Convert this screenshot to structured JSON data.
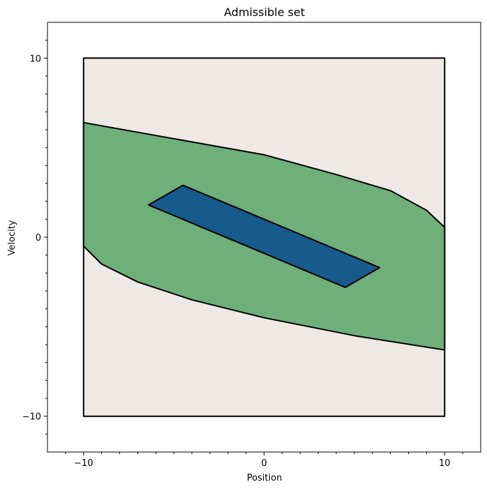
{
  "chart_data": {
    "type": "area",
    "title": "Admissible set",
    "xlabel": "Position",
    "ylabel": "Velocity",
    "xlim": [
      -12,
      12
    ],
    "ylim": [
      -12,
      12
    ],
    "x_ticks": [
      -10,
      0,
      10
    ],
    "y_ticks": [
      -10,
      0,
      10
    ],
    "x_tick_labels": [
      "−10",
      "0",
      "10"
    ],
    "y_tick_labels": [
      "−10",
      "0",
      "10"
    ],
    "x_minor_ticks": [
      -11,
      -9,
      -8,
      -7,
      -6,
      -5,
      -4,
      -3,
      -2,
      -1,
      1,
      2,
      3,
      4,
      5,
      6,
      7,
      8,
      9,
      11
    ],
    "y_minor_ticks": [
      -11,
      -9,
      -8,
      -7,
      -6,
      -5,
      -4,
      -3,
      -2,
      -1,
      1,
      2,
      3,
      4,
      5,
      6,
      7,
      8,
      9,
      11
    ],
    "grid": false,
    "legend": "none",
    "regions": [
      {
        "fill": "#efe9e6",
        "points": [
          [
            -10,
            -10
          ],
          [
            10,
            -10
          ],
          [
            10,
            10
          ],
          [
            -10,
            10
          ]
        ]
      },
      {
        "fill": "#6faf7a",
        "points": [
          [
            -10,
            6.4
          ],
          [
            -5,
            5.5
          ],
          [
            0,
            4.6
          ],
          [
            4,
            3.5
          ],
          [
            7,
            2.6
          ],
          [
            9,
            1.5
          ],
          [
            10,
            0.55
          ],
          [
            10,
            -6.3
          ],
          [
            5,
            -5.5
          ],
          [
            0,
            -4.5
          ],
          [
            -4,
            -3.5
          ],
          [
            -7,
            -2.5
          ],
          [
            -9,
            -1.5
          ],
          [
            -10,
            -0.5
          ]
        ]
      },
      {
        "fill": "#175a8c",
        "points": [
          [
            -6.4,
            1.8
          ],
          [
            -4.5,
            2.9
          ],
          [
            6.4,
            -1.7
          ],
          [
            4.5,
            -2.8
          ]
        ]
      }
    ]
  }
}
